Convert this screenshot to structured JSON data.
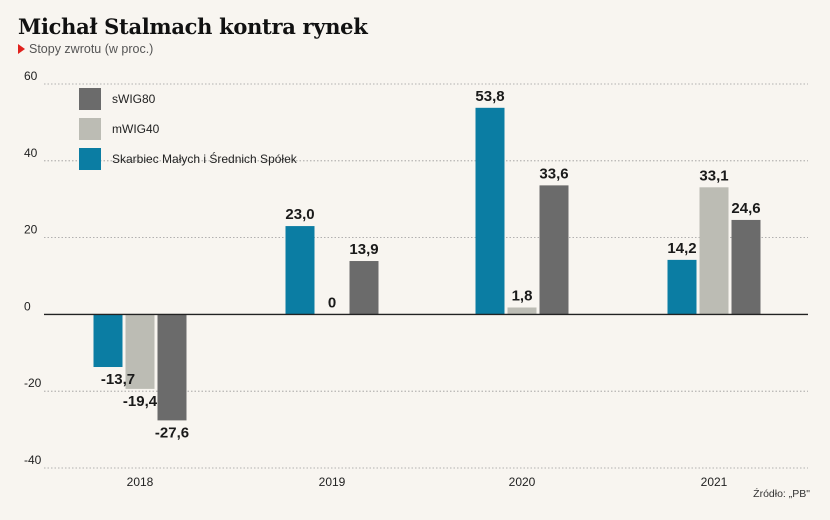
{
  "title": "Michał Stalmach kontra rynek",
  "subtitle": "Stopy zwrotu (w proc.)",
  "source": "Źródło: „PB\"",
  "colors": {
    "Skarbiec Małych i Średnich Spółek": "#0b7da3",
    "mWIG40": "#bcbcb4",
    "sWIG80": "#6b6b6b"
  },
  "chart_data": {
    "type": "bar",
    "categories": [
      "2018",
      "2019",
      "2020",
      "2021"
    ],
    "ylim": [
      -40,
      60
    ],
    "yticks": [
      "60",
      "40",
      "20",
      "0",
      "-20",
      "-40"
    ],
    "ytick_values": [
      60,
      40,
      20,
      0,
      -20,
      -40
    ],
    "grid": true,
    "legend_position": "top-left",
    "legend_order": [
      "sWIG80",
      "mWIG40",
      "Skarbiec Małych i Średnich Spółek"
    ],
    "series": [
      {
        "name": "Skarbiec Małych i Średnich Spółek",
        "values": [
          -13.7,
          23.0,
          53.8,
          14.2
        ],
        "labels": [
          "-13,7",
          "23,0",
          "53,8",
          "14,2"
        ]
      },
      {
        "name": "mWIG40",
        "values": [
          -19.4,
          0,
          1.8,
          33.1
        ],
        "labels": [
          "-19,4",
          "0",
          "1,8",
          "33,1"
        ]
      },
      {
        "name": "sWIG80",
        "values": [
          -27.6,
          13.9,
          33.6,
          24.6
        ],
        "labels": [
          "-27,6",
          "13,9",
          "33,6",
          "24,6"
        ]
      }
    ]
  }
}
